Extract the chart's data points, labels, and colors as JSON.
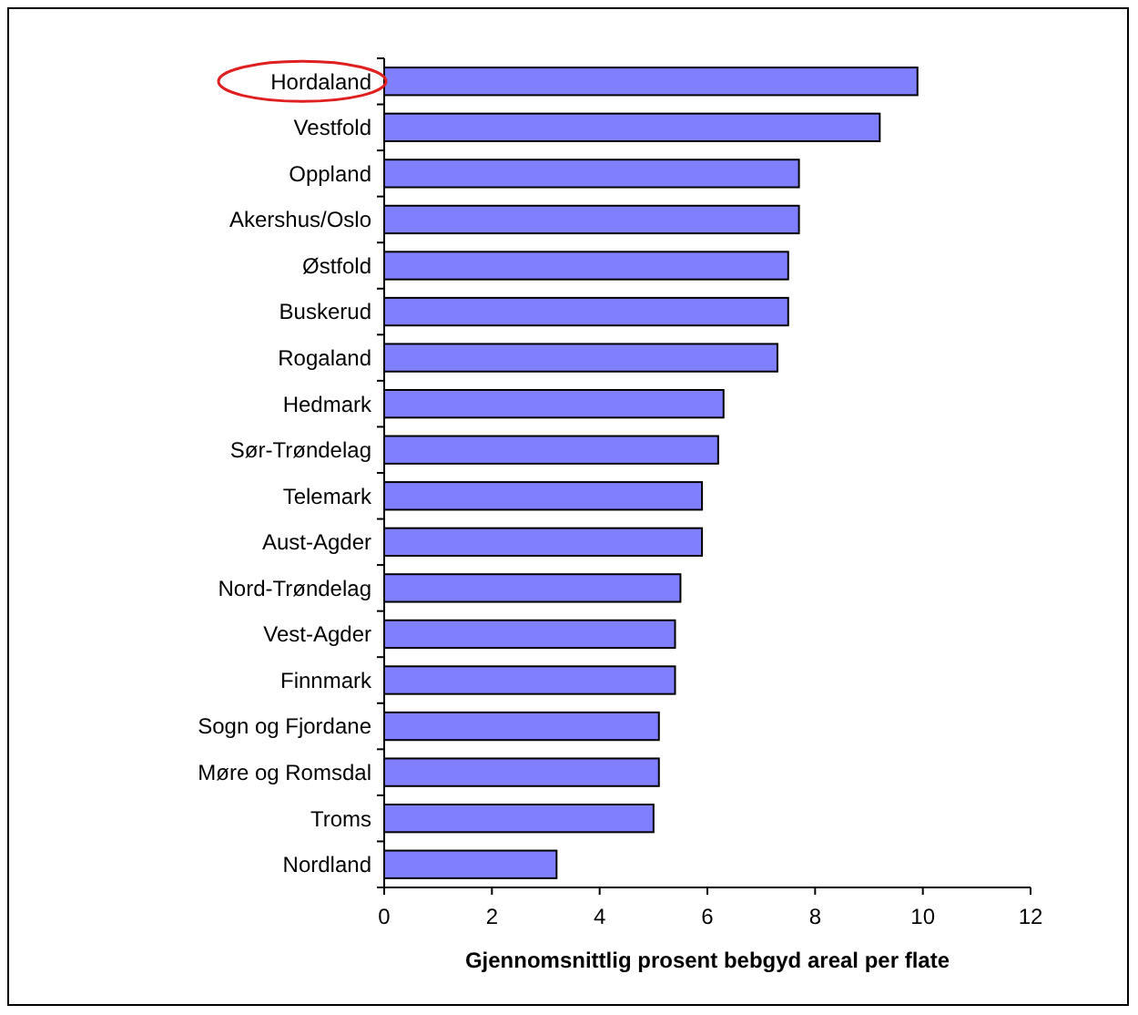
{
  "chart_data": {
    "type": "bar",
    "orientation": "horizontal",
    "xlabel": "Gjennomsnittlig prosent bebgyd areal per flate",
    "categories": [
      "Hordaland",
      "Vestfold",
      "Oppland",
      "Akershus/Oslo",
      "Østfold",
      "Buskerud",
      "Rogaland",
      "Hedmark",
      "Sør-Trøndelag",
      "Telemark",
      "Aust-Agder",
      "Nord-Trøndelag",
      "Vest-Agder",
      "Finnmark",
      "Sogn og Fjordane",
      "Møre og Romsdal",
      "Troms",
      "Nordland"
    ],
    "values": [
      9.9,
      9.2,
      7.7,
      7.7,
      7.5,
      7.5,
      7.3,
      6.3,
      6.2,
      5.9,
      5.9,
      5.5,
      5.4,
      5.4,
      5.1,
      5.1,
      5.0,
      3.2
    ],
    "color": "#8080ff",
    "xlim": [
      0,
      12
    ],
    "xticks": [
      0,
      2,
      4,
      6,
      8,
      10,
      12
    ],
    "grid": false
  }
}
